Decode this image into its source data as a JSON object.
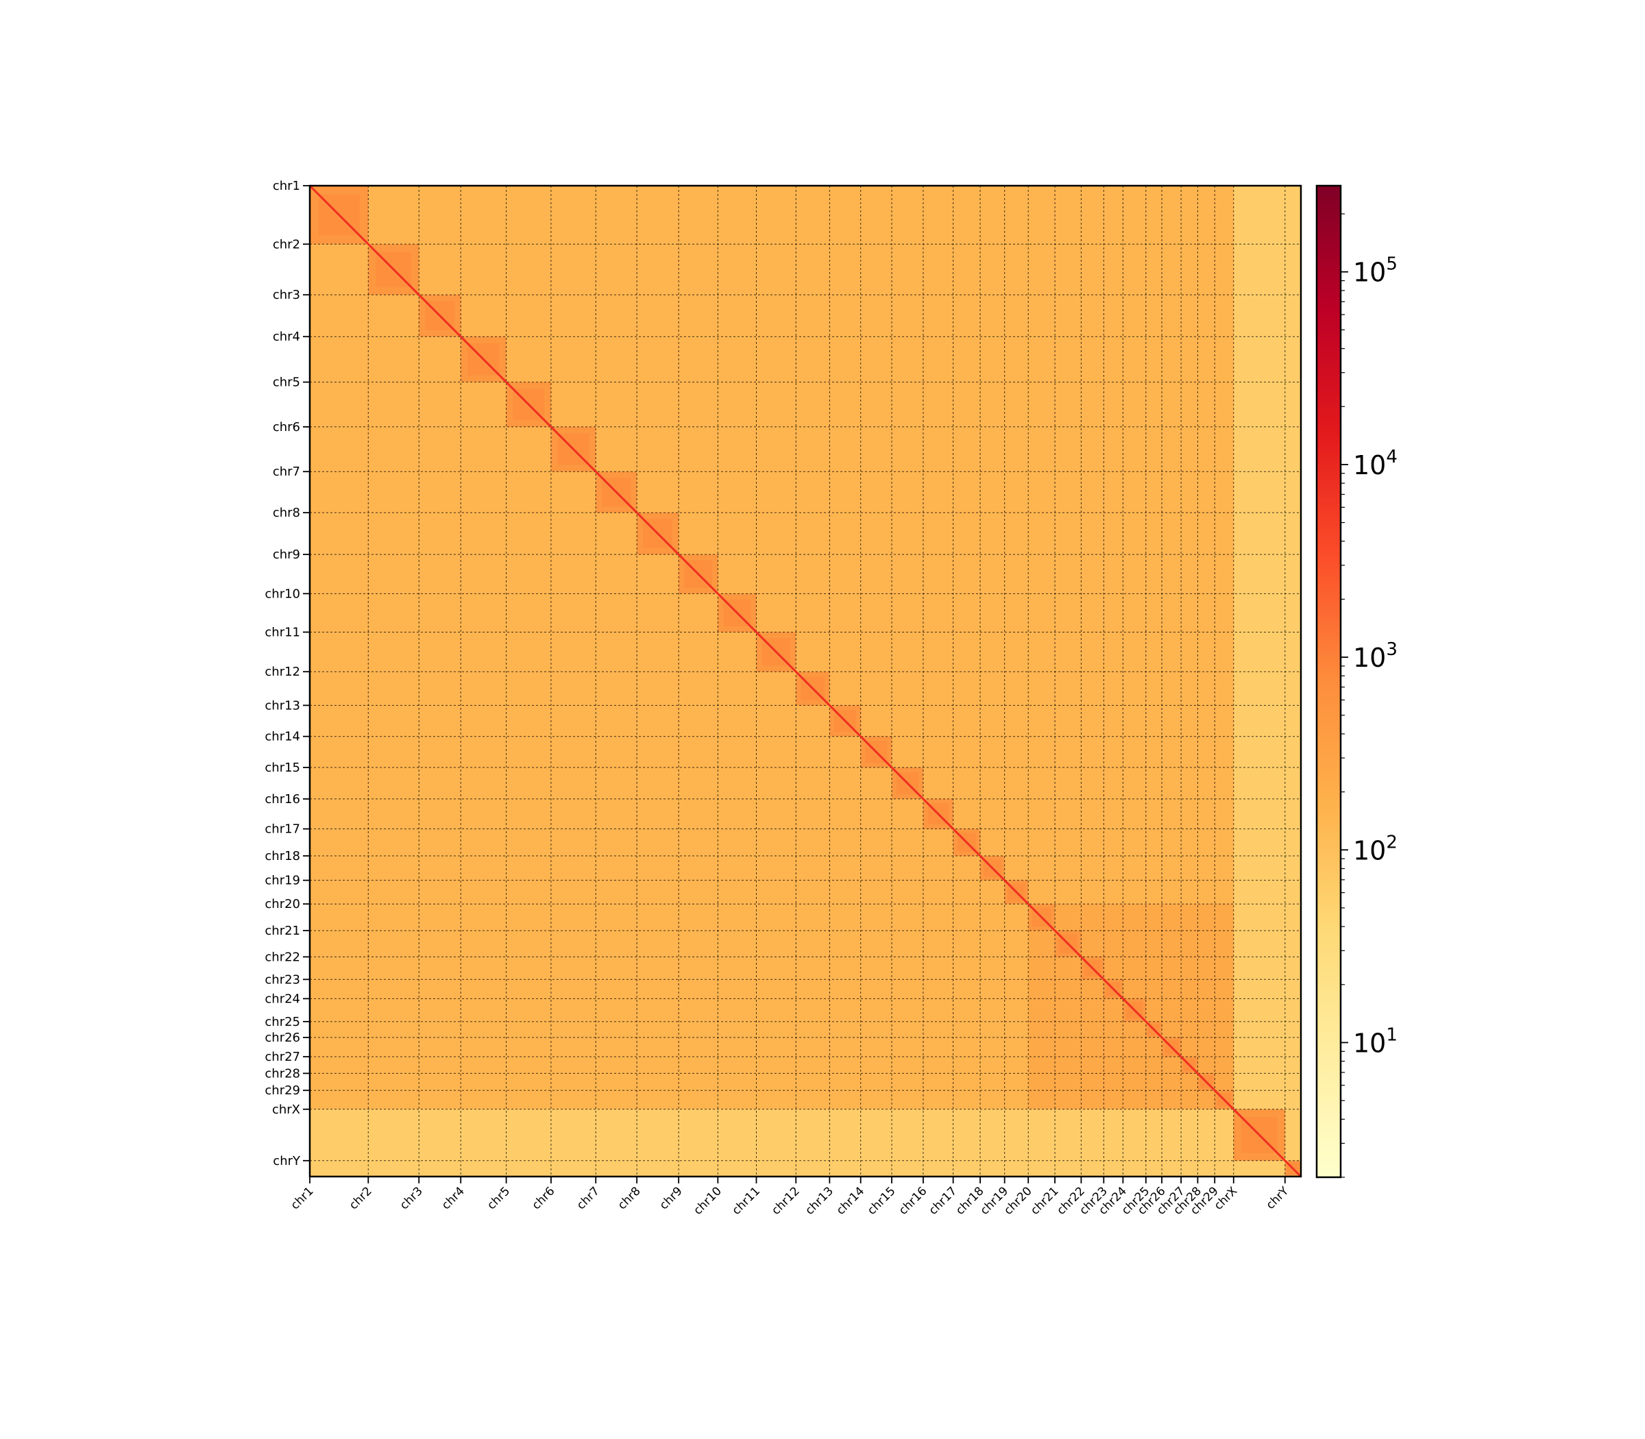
{
  "chart_data": {
    "type": "heatmap",
    "title": "",
    "xlabel": "",
    "ylabel": "",
    "chromosomes": [
      {
        "name": "chr1",
        "start": 0,
        "length": 158
      },
      {
        "name": "chr2",
        "start": 158,
        "length": 137
      },
      {
        "name": "chr3",
        "start": 295,
        "length": 113
      },
      {
        "name": "chr4",
        "start": 408,
        "length": 123
      },
      {
        "name": "chr5",
        "start": 531,
        "length": 121
      },
      {
        "name": "chr6",
        "start": 652,
        "length": 121
      },
      {
        "name": "chr7",
        "start": 773,
        "length": 111
      },
      {
        "name": "chr8",
        "start": 884,
        "length": 113
      },
      {
        "name": "chr9",
        "start": 997,
        "length": 106
      },
      {
        "name": "chr10",
        "start": 1103,
        "length": 104
      },
      {
        "name": "chr11",
        "start": 1207,
        "length": 107
      },
      {
        "name": "chr12",
        "start": 1314,
        "length": 91
      },
      {
        "name": "chr13",
        "start": 1405,
        "length": 84
      },
      {
        "name": "chr14",
        "start": 1489,
        "length": 84
      },
      {
        "name": "chr15",
        "start": 1573,
        "length": 85
      },
      {
        "name": "chr16",
        "start": 1658,
        "length": 81
      },
      {
        "name": "chr17",
        "start": 1739,
        "length": 73
      },
      {
        "name": "chr18",
        "start": 1812,
        "length": 66
      },
      {
        "name": "chr19",
        "start": 1878,
        "length": 64
      },
      {
        "name": "chr20",
        "start": 1942,
        "length": 72
      },
      {
        "name": "chr21",
        "start": 2014,
        "length": 71
      },
      {
        "name": "chr22",
        "start": 2085,
        "length": 61
      },
      {
        "name": "chr23",
        "start": 2146,
        "length": 52
      },
      {
        "name": "chr24",
        "start": 2198,
        "length": 62
      },
      {
        "name": "chr25",
        "start": 2260,
        "length": 43
      },
      {
        "name": "chr26",
        "start": 2303,
        "length": 52
      },
      {
        "name": "chr27",
        "start": 2355,
        "length": 45
      },
      {
        "name": "chr28",
        "start": 2400,
        "length": 46
      },
      {
        "name": "chr29",
        "start": 2446,
        "length": 51
      },
      {
        "name": "chrX",
        "start": 2497,
        "length": 139
      },
      {
        "name": "chrY",
        "start": 2636,
        "length": 43
      }
    ],
    "total_length": 2679,
    "colorbar": {
      "scale": "log",
      "range": [
        2,
        280000
      ],
      "tick_labels": [
        {
          "base": "10",
          "exp": "1",
          "value": 10
        },
        {
          "base": "10",
          "exp": "2",
          "value": 100
        },
        {
          "base": "10",
          "exp": "3",
          "value": 1000
        },
        {
          "base": "10",
          "exp": "4",
          "value": 10000
        },
        {
          "base": "10",
          "exp": "5",
          "value": 100000
        }
      ],
      "colormap": "YlOrRd",
      "colors": [
        "#ffffcc",
        "#ffeda0",
        "#fed976",
        "#feb24c",
        "#fd8d3c",
        "#fc4e2a",
        "#e31a1c",
        "#bd0026",
        "#800026"
      ]
    },
    "typical_values": {
      "inter_chromosomal": 150,
      "intra_chromosomal": 500,
      "diagonal": 8000,
      "sex_chromosome_trans": 60
    },
    "grid": "dashed chromosome boundaries"
  }
}
